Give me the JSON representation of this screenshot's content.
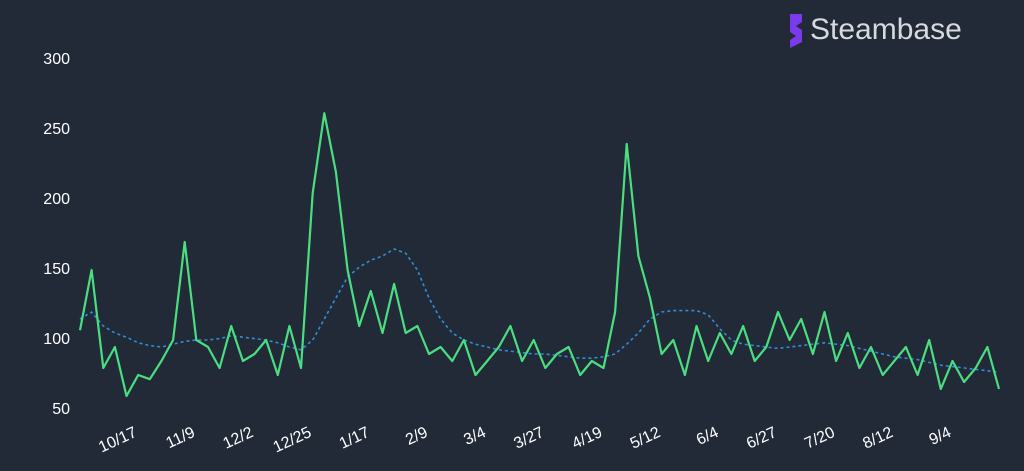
{
  "logo": "Steambase",
  "chart_data": {
    "type": "line",
    "categories": [
      null,
      null,
      null,
      null,
      null,
      "10/17",
      null,
      null,
      null,
      null,
      "11/9",
      null,
      null,
      null,
      null,
      "12/2",
      null,
      null,
      null,
      null,
      "12/25",
      null,
      null,
      null,
      null,
      "1/17",
      null,
      null,
      null,
      null,
      "2/9",
      null,
      null,
      null,
      null,
      "3/4",
      null,
      null,
      null,
      null,
      "3/27",
      null,
      null,
      null,
      null,
      "4/19",
      null,
      null,
      null,
      null,
      "5/12",
      null,
      null,
      null,
      null,
      "6/4",
      null,
      null,
      null,
      null,
      "6/27",
      null,
      null,
      null,
      null,
      "7/20",
      null,
      null,
      null,
      null,
      "8/12",
      null,
      null,
      null,
      null,
      "9/4",
      null,
      null,
      null,
      null
    ],
    "series": [
      {
        "color": "#4ade80",
        "dashed": false,
        "values": [
          107,
          150,
          80,
          95,
          60,
          75,
          72,
          85,
          100,
          170,
          100,
          95,
          80,
          110,
          85,
          90,
          100,
          75,
          110,
          80,
          205,
          262,
          220,
          150,
          110,
          135,
          105,
          140,
          105,
          110,
          90,
          95,
          85,
          100,
          75,
          85,
          95,
          110,
          85,
          100,
          80,
          90,
          95,
          75,
          85,
          80,
          120,
          240,
          160,
          130,
          90,
          100,
          75,
          110,
          85,
          105,
          90,
          110,
          85,
          95,
          120,
          100,
          115,
          90,
          120,
          85,
          105,
          80,
          95,
          75,
          85,
          95,
          75,
          100,
          65,
          85,
          70,
          80,
          95,
          65
        ]
      },
      {
        "color": "#2d8fd5",
        "dashed": true,
        "values": [
          115,
          120,
          110,
          105,
          102,
          98,
          96,
          95,
          97,
          99,
          100,
          100,
          101,
          103,
          102,
          101,
          100,
          98,
          95,
          93,
          100,
          115,
          130,
          145,
          152,
          157,
          160,
          165,
          162,
          150,
          130,
          115,
          105,
          100,
          97,
          95,
          93,
          92,
          91,
          90,
          90,
          89,
          88,
          87,
          87,
          88,
          90,
          97,
          105,
          115,
          120,
          121,
          121,
          121,
          118,
          108,
          100,
          97,
          96,
          95,
          94,
          95,
          96,
          97,
          98,
          97,
          96,
          94,
          92,
          90,
          88,
          87,
          86,
          84,
          82,
          81,
          80,
          79,
          78,
          77
        ]
      }
    ],
    "ylim": [
      50,
      300
    ],
    "yticks": [
      50,
      100,
      150,
      200,
      250,
      300
    ],
    "grid": false
  }
}
